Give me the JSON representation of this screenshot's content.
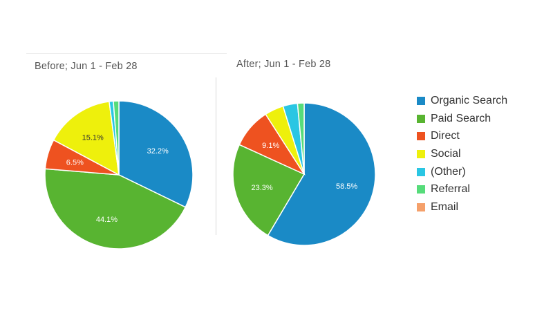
{
  "chart_data": [
    {
      "type": "pie",
      "title": "Before; Jun 1 - Feb 28",
      "slices": [
        {
          "category": "Organic Search",
          "value": 32.2,
          "label": "32.2%"
        },
        {
          "category": "Paid Search",
          "value": 44.1,
          "label": "44.1%"
        },
        {
          "category": "Direct",
          "value": 6.5,
          "label": "6.5%"
        },
        {
          "category": "Social",
          "value": 15.1,
          "label": "15.1%"
        },
        {
          "category": "(Other)",
          "value": 0.9,
          "label": ""
        },
        {
          "category": "Referral",
          "value": 1.2,
          "label": ""
        },
        {
          "category": "Email",
          "value": 0.0,
          "label": ""
        }
      ]
    },
    {
      "type": "pie",
      "title": "After; Jun 1 - Feb 28",
      "slices": [
        {
          "category": "Organic Search",
          "value": 58.5,
          "label": "58.5%"
        },
        {
          "category": "Paid Search",
          "value": 23.3,
          "label": "23.3%"
        },
        {
          "category": "Direct",
          "value": 9.1,
          "label": "9.1%"
        },
        {
          "category": "Social",
          "value": 4.3,
          "label": ""
        },
        {
          "category": "(Other)",
          "value": 3.3,
          "label": ""
        },
        {
          "category": "Referral",
          "value": 1.5,
          "label": ""
        },
        {
          "category": "Email",
          "value": 0.0,
          "label": ""
        }
      ]
    }
  ],
  "legend": {
    "placement": "right",
    "items": [
      {
        "label": "Organic Search",
        "color": "#1a8ac6"
      },
      {
        "label": "Paid Search",
        "color": "#58b431"
      },
      {
        "label": "Direct",
        "color": "#ee5220"
      },
      {
        "label": "Social",
        "color": "#eef00c"
      },
      {
        "label": "(Other)",
        "color": "#2ac6e3"
      },
      {
        "label": "Referral",
        "color": "#56dc7a"
      },
      {
        "label": "Email",
        "color": "#f5a06a"
      }
    ]
  }
}
